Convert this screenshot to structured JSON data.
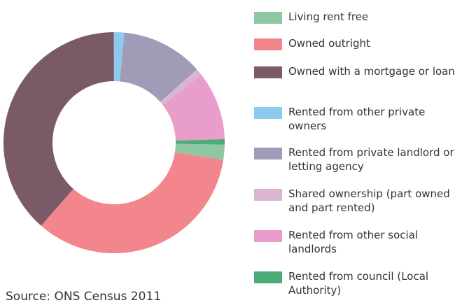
{
  "chart_data": {
    "type": "donut",
    "labels": [
      "Living rent free",
      "Owned outright",
      "Owned with a mortgage or loan",
      "Rented from other private owners",
      "Rented from private landlord or letting agency",
      "Shared ownership (part owned and part rented)",
      "Rented from other social landlords",
      "Rented from council (Local Authority)"
    ],
    "values": [
      2.2,
      34,
      38.5,
      1.5,
      12,
      1,
      10,
      0.8
    ],
    "colors": [
      "#8fc7a5",
      "#f3868c",
      "#7b5a67",
      "#8ecaee",
      "#a09bb7",
      "#dab5d1",
      "#e89dcb",
      "#4cab76"
    ],
    "legend": "right",
    "source": "Source: ONS Census 2011"
  }
}
